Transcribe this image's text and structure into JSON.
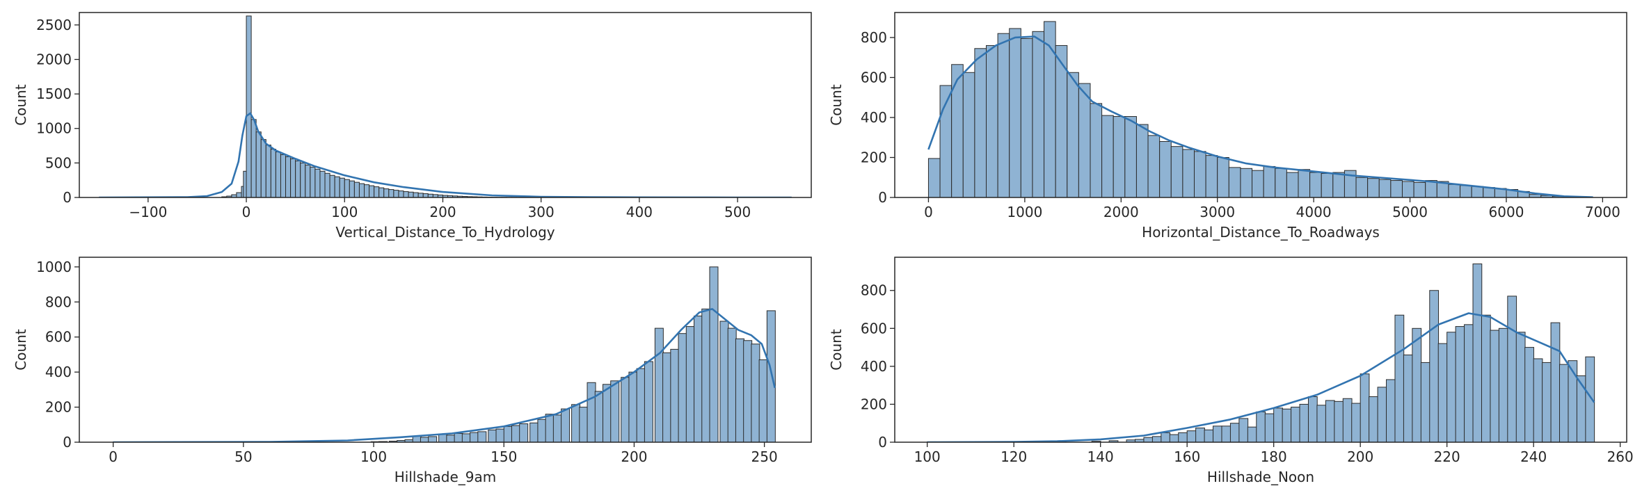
{
  "colors": {
    "bar_fill": "#8fb3d3",
    "bar_edge": "#2b2b2b",
    "kde_line": "#3274b0",
    "axes": "#262626"
  },
  "chart_data": [
    {
      "type": "bar",
      "subtype": "histogram-with-kde",
      "xlabel": "Vertical_Distance_To_Hydrology",
      "ylabel": "Count",
      "xlim": [
        -170,
        575
      ],
      "ylim": [
        0,
        2680
      ],
      "xticks": [
        -100,
        0,
        100,
        200,
        300,
        400,
        500
      ],
      "xtick_labels": [
        "−100",
        "0",
        "100",
        "200",
        "300",
        "400",
        "500"
      ],
      "yticks": [
        0,
        500,
        1000,
        1500,
        2000,
        2500
      ],
      "ytick_labels": [
        "0",
        "500",
        "1000",
        "1500",
        "2000",
        "2500"
      ],
      "bin_width": 5,
      "bins": [
        [
          -25,
          10
        ],
        [
          -20,
          20
        ],
        [
          -15,
          40
        ],
        [
          -10,
          70
        ],
        [
          -5,
          160
        ],
        [
          -3,
          380
        ],
        [
          0,
          2630
        ],
        [
          5,
          1130
        ],
        [
          10,
          950
        ],
        [
          15,
          840
        ],
        [
          20,
          760
        ],
        [
          25,
          700
        ],
        [
          30,
          660
        ],
        [
          35,
          620
        ],
        [
          40,
          590
        ],
        [
          45,
          560
        ],
        [
          50,
          530
        ],
        [
          55,
          500
        ],
        [
          60,
          470
        ],
        [
          65,
          440
        ],
        [
          70,
          410
        ],
        [
          75,
          380
        ],
        [
          80,
          350
        ],
        [
          85,
          320
        ],
        [
          90,
          300
        ],
        [
          95,
          280
        ],
        [
          100,
          260
        ],
        [
          105,
          240
        ],
        [
          110,
          220
        ],
        [
          115,
          200
        ],
        [
          120,
          185
        ],
        [
          125,
          170
        ],
        [
          130,
          155
        ],
        [
          135,
          140
        ],
        [
          140,
          125
        ],
        [
          145,
          115
        ],
        [
          150,
          105
        ],
        [
          155,
          95
        ],
        [
          160,
          85
        ],
        [
          165,
          78
        ],
        [
          170,
          70
        ],
        [
          175,
          62
        ],
        [
          180,
          55
        ],
        [
          185,
          48
        ],
        [
          190,
          42
        ],
        [
          195,
          36
        ],
        [
          200,
          30
        ],
        [
          205,
          26
        ],
        [
          210,
          22
        ],
        [
          215,
          18
        ],
        [
          220,
          15
        ],
        [
          225,
          12
        ],
        [
          230,
          10
        ],
        [
          235,
          8
        ],
        [
          240,
          6
        ],
        [
          245,
          5
        ],
        [
          250,
          4
        ],
        [
          255,
          3
        ],
        [
          260,
          3
        ],
        [
          265,
          2
        ],
        [
          270,
          2
        ],
        [
          275,
          1
        ],
        [
          280,
          1
        ],
        [
          290,
          1
        ],
        [
          300,
          1
        ]
      ],
      "kde": {
        "x": [
          -150,
          -60,
          -40,
          -25,
          -15,
          -8,
          -4,
          0,
          4,
          8,
          12,
          20,
          30,
          50,
          70,
          100,
          130,
          160,
          200,
          250,
          300,
          350,
          400,
          450,
          500,
          555
        ],
        "y": [
          0,
          5,
          20,
          80,
          200,
          520,
          900,
          1180,
          1220,
          1120,
          960,
          780,
          680,
          560,
          450,
          320,
          220,
          150,
          80,
          30,
          10,
          4,
          2,
          1,
          0,
          0
        ]
      }
    },
    {
      "type": "bar",
      "subtype": "histogram-with-kde",
      "xlabel": "Horizontal_Distance_To_Roadways",
      "ylabel": "Count",
      "xlim": [
        -350,
        7250
      ],
      "ylim": [
        0,
        925
      ],
      "xticks": [
        0,
        1000,
        2000,
        3000,
        4000,
        5000,
        6000,
        7000
      ],
      "xtick_labels": [
        "0",
        "1000",
        "2000",
        "3000",
        "4000",
        "5000",
        "6000",
        "7000"
      ],
      "yticks": [
        0,
        200,
        400,
        600,
        800
      ],
      "ytick_labels": [
        "0",
        "200",
        "400",
        "600",
        "800"
      ],
      "bin_width": 120,
      "bins": [
        [
          0,
          195
        ],
        [
          120,
          560
        ],
        [
          240,
          665
        ],
        [
          360,
          625
        ],
        [
          480,
          745
        ],
        [
          600,
          760
        ],
        [
          720,
          820
        ],
        [
          840,
          845
        ],
        [
          960,
          795
        ],
        [
          1080,
          830
        ],
        [
          1200,
          880
        ],
        [
          1320,
          760
        ],
        [
          1440,
          625
        ],
        [
          1560,
          570
        ],
        [
          1680,
          470
        ],
        [
          1800,
          410
        ],
        [
          1920,
          405
        ],
        [
          2040,
          405
        ],
        [
          2160,
          365
        ],
        [
          2280,
          310
        ],
        [
          2400,
          280
        ],
        [
          2520,
          255
        ],
        [
          2640,
          240
        ],
        [
          2760,
          230
        ],
        [
          2880,
          210
        ],
        [
          3000,
          200
        ],
        [
          3120,
          150
        ],
        [
          3240,
          145
        ],
        [
          3360,
          135
        ],
        [
          3480,
          155
        ],
        [
          3600,
          145
        ],
        [
          3720,
          125
        ],
        [
          3840,
          140
        ],
        [
          3960,
          125
        ],
        [
          4080,
          120
        ],
        [
          4200,
          125
        ],
        [
          4320,
          135
        ],
        [
          4440,
          100
        ],
        [
          4560,
          95
        ],
        [
          4680,
          90
        ],
        [
          4800,
          85
        ],
        [
          4920,
          80
        ],
        [
          5040,
          75
        ],
        [
          5160,
          85
        ],
        [
          5280,
          80
        ],
        [
          5400,
          65
        ],
        [
          5520,
          60
        ],
        [
          5640,
          55
        ],
        [
          5760,
          50
        ],
        [
          5880,
          45
        ],
        [
          6000,
          40
        ],
        [
          6120,
          30
        ],
        [
          6240,
          15
        ],
        [
          6360,
          10
        ],
        [
          6480,
          6
        ],
        [
          6600,
          4
        ],
        [
          6720,
          2
        ]
      ],
      "kde": {
        "x": [
          0,
          150,
          300,
          500,
          700,
          900,
          1100,
          1250,
          1400,
          1550,
          1700,
          1900,
          2100,
          2300,
          2500,
          2700,
          3000,
          3300,
          3600,
          4000,
          4400,
          4800,
          5200,
          5600,
          6000,
          6300,
          6600,
          6900
        ],
        "y": [
          240,
          440,
          590,
          690,
          760,
          800,
          805,
          760,
          660,
          560,
          480,
          430,
          385,
          330,
          285,
          250,
          205,
          170,
          150,
          130,
          110,
          95,
          80,
          60,
          40,
          20,
          6,
          1
        ]
      }
    },
    {
      "type": "bar",
      "subtype": "histogram-with-kde",
      "xlabel": "Hillshade_9am",
      "ylabel": "Count",
      "xlim": [
        -13,
        268
      ],
      "ylim": [
        0,
        1055
      ],
      "xticks": [
        0,
        50,
        100,
        150,
        200,
        250
      ],
      "xtick_labels": [
        "0",
        "50",
        "100",
        "150",
        "200",
        "250"
      ],
      "yticks": [
        0,
        200,
        400,
        600,
        800,
        1000
      ],
      "ytick_labels": [
        "0",
        "200",
        "400",
        "600",
        "800",
        "1000"
      ],
      "bin_width": 3.2,
      "bins": [
        [
          0,
          2
        ],
        [
          58,
          1
        ],
        [
          99,
          3
        ],
        [
          102,
          4
        ],
        [
          106,
          6
        ],
        [
          109,
          10
        ],
        [
          112,
          14
        ],
        [
          115,
          35
        ],
        [
          118,
          28
        ],
        [
          121,
          32
        ],
        [
          125,
          45
        ],
        [
          128,
          40
        ],
        [
          131,
          50
        ],
        [
          134,
          48
        ],
        [
          137,
          55
        ],
        [
          140,
          60
        ],
        [
          144,
          70
        ],
        [
          147,
          75
        ],
        [
          150,
          90
        ],
        [
          153,
          95
        ],
        [
          156,
          105
        ],
        [
          160,
          110
        ],
        [
          163,
          130
        ],
        [
          166,
          160
        ],
        [
          169,
          155
        ],
        [
          172,
          190
        ],
        [
          176,
          215
        ],
        [
          179,
          200
        ],
        [
          182,
          340
        ],
        [
          185,
          290
        ],
        [
          188,
          330
        ],
        [
          191,
          350
        ],
        [
          195,
          370
        ],
        [
          198,
          400
        ],
        [
          201,
          420
        ],
        [
          204,
          460
        ],
        [
          208,
          650
        ],
        [
          211,
          510
        ],
        [
          214,
          530
        ],
        [
          217,
          620
        ],
        [
          220,
          660
        ],
        [
          223,
          720
        ],
        [
          226,
          760
        ],
        [
          229,
          1000
        ],
        [
          233,
          690
        ],
        [
          236,
          650
        ],
        [
          239,
          590
        ],
        [
          242,
          580
        ],
        [
          245,
          560
        ],
        [
          248,
          470
        ],
        [
          251,
          750
        ]
      ],
      "kde": {
        "x": [
          0,
          60,
          90,
          110,
          130,
          150,
          170,
          185,
          200,
          210,
          218,
          225,
          230,
          235,
          240,
          245,
          249,
          252,
          254
        ],
        "y": [
          0,
          2,
          10,
          28,
          50,
          90,
          160,
          260,
          400,
          510,
          640,
          740,
          760,
          700,
          640,
          610,
          560,
          440,
          310
        ]
      }
    },
    {
      "type": "bar",
      "subtype": "histogram-with-kde",
      "xlabel": "Hillshade_Noon",
      "ylabel": "Count",
      "xlim": [
        92.5,
        261.5
      ],
      "ylim": [
        0,
        975
      ],
      "xticks": [
        100,
        120,
        140,
        160,
        180,
        200,
        220,
        240,
        260
      ],
      "xtick_labels": [
        "100",
        "120",
        "140",
        "160",
        "180",
        "200",
        "220",
        "240",
        "260"
      ],
      "yticks": [
        0,
        200,
        400,
        600,
        800
      ],
      "ytick_labels": [
        "0",
        "200",
        "400",
        "600",
        "800"
      ],
      "bin_width": 2.05,
      "bins": [
        [
          100,
          2
        ],
        [
          130,
          2
        ],
        [
          138,
          5
        ],
        [
          142,
          8
        ],
        [
          146,
          12
        ],
        [
          148,
          15
        ],
        [
          150,
          25
        ],
        [
          152,
          30
        ],
        [
          154,
          50
        ],
        [
          156,
          40
        ],
        [
          158,
          50
        ],
        [
          160,
          60
        ],
        [
          162,
          75
        ],
        [
          164,
          65
        ],
        [
          166,
          85
        ],
        [
          168,
          85
        ],
        [
          170,
          100
        ],
        [
          172,
          125
        ],
        [
          174,
          80
        ],
        [
          176,
          160
        ],
        [
          178,
          150
        ],
        [
          180,
          180
        ],
        [
          182,
          175
        ],
        [
          184,
          185
        ],
        [
          186,
          200
        ],
        [
          188,
          240
        ],
        [
          190,
          195
        ],
        [
          192,
          220
        ],
        [
          194,
          215
        ],
        [
          196,
          230
        ],
        [
          198,
          205
        ],
        [
          200,
          360
        ],
        [
          202,
          240
        ],
        [
          204,
          290
        ],
        [
          206,
          330
        ],
        [
          208,
          670
        ],
        [
          210,
          460
        ],
        [
          212,
          600
        ],
        [
          214,
          420
        ],
        [
          216,
          800
        ],
        [
          218,
          520
        ],
        [
          220,
          580
        ],
        [
          222,
          610
        ],
        [
          224,
          620
        ],
        [
          226,
          940
        ],
        [
          228,
          670
        ],
        [
          230,
          590
        ],
        [
          232,
          600
        ],
        [
          234,
          770
        ],
        [
          236,
          580
        ],
        [
          238,
          500
        ],
        [
          240,
          440
        ],
        [
          242,
          420
        ],
        [
          244,
          630
        ],
        [
          246,
          410
        ],
        [
          248,
          430
        ],
        [
          250,
          350
        ],
        [
          252,
          450
        ]
      ],
      "kde": {
        "x": [
          100,
          120,
          130,
          140,
          150,
          160,
          170,
          180,
          190,
          200,
          210,
          218,
          225,
          230,
          236,
          242,
          246,
          250,
          254
        ],
        "y": [
          0,
          2,
          5,
          15,
          35,
          75,
          120,
          180,
          250,
          350,
          490,
          620,
          680,
          660,
          580,
          520,
          480,
          340,
          210
        ]
      }
    }
  ]
}
